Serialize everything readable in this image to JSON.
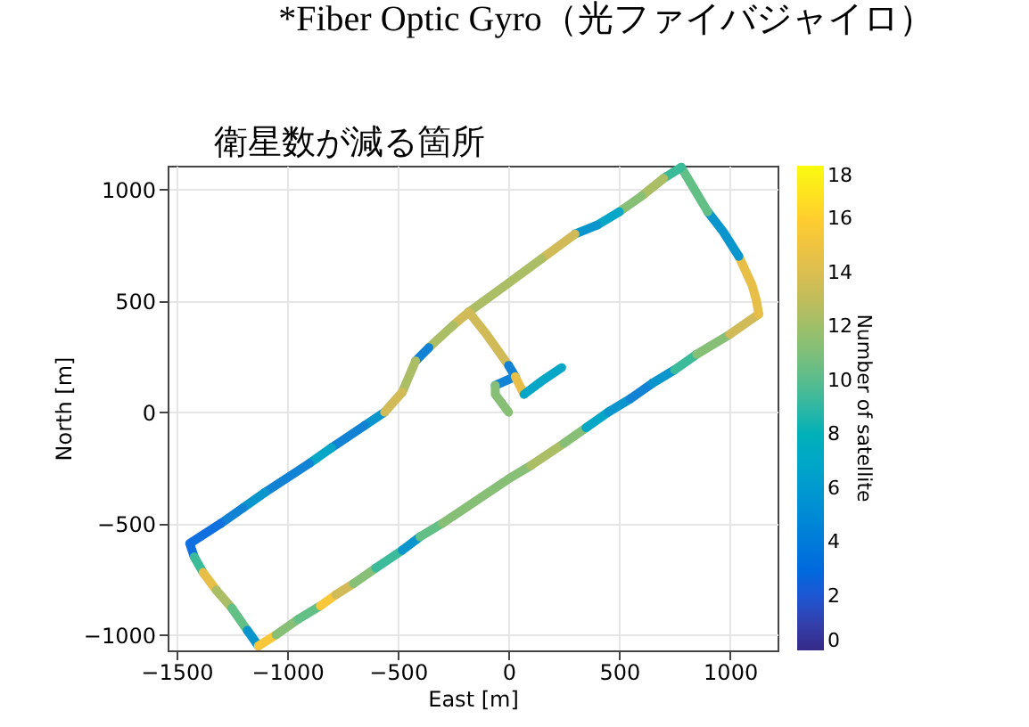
{
  "chart_data": {
    "type": "line",
    "title": "*Fiber Optic Gyro（光ファイバジャイロ）",
    "xlabel": "East [m]",
    "ylabel": "North [m]",
    "clabel": "Number of satellite",
    "annotations": [
      "衛星数が減る箇所"
    ],
    "xlim": [
      -1540,
      1215
    ],
    "ylim": [
      -1070,
      1107
    ],
    "xticks": [
      -1500,
      -1000,
      -500,
      0,
      500,
      1000
    ],
    "yticks": [
      -1000,
      -500,
      0,
      500,
      1000
    ],
    "clim": [
      0,
      18
    ],
    "cticks": [
      0,
      2,
      4,
      6,
      8,
      10,
      12,
      14,
      16,
      18
    ],
    "grid": true,
    "series": [
      {
        "color": "#0a96cc",
        "x": [
          -560,
          -650
        ],
        "values": [
          0,
          -60
        ]
      },
      {
        "color": "#1283d4",
        "x": [
          -650,
          -800
        ],
        "values": [
          -60,
          -160
        ]
      },
      {
        "color": "#06a7c6",
        "x": [
          -800,
          -900
        ],
        "values": [
          -160,
          -230
        ]
      },
      {
        "color": "#1283d4",
        "x": [
          -900,
          -1100
        ],
        "values": [
          -230,
          -360
        ]
      },
      {
        "color": "#0a96cc",
        "x": [
          -1100,
          -1200
        ],
        "values": [
          -360,
          -430
        ]
      },
      {
        "color": "#1283d4",
        "x": [
          -1200,
          -1300
        ],
        "values": [
          -430,
          -500
        ]
      },
      {
        "color": "#1170e0",
        "x": [
          -1300,
          -1440,
          -1420
        ],
        "values": [
          -500,
          -590,
          -650
        ]
      },
      {
        "color": "#3cbb9a",
        "x": [
          -1420,
          -1380
        ],
        "values": [
          -650,
          -720
        ]
      },
      {
        "color": "#e6be48",
        "x": [
          -1380,
          -1320
        ],
        "values": [
          -720,
          -800
        ]
      },
      {
        "color": "#abbd65",
        "x": [
          -1320,
          -1250
        ],
        "values": [
          -800,
          -880
        ]
      },
      {
        "color": "#62bf85",
        "x": [
          -1250,
          -1180
        ],
        "values": [
          -880,
          -980
        ]
      },
      {
        "color": "#0a96cc",
        "x": [
          -1180,
          -1130
        ],
        "values": [
          -980,
          -1050
        ]
      },
      {
        "color": "#f8c73a",
        "x": [
          -1130,
          -1050
        ],
        "values": [
          -1050,
          -1000
        ]
      },
      {
        "color": "#87bf77",
        "x": [
          -1050,
          -950
        ],
        "values": [
          -1000,
          -930
        ]
      },
      {
        "color": "#62bf85",
        "x": [
          -950,
          -850
        ],
        "values": [
          -930,
          -870
        ]
      },
      {
        "color": "#f8c73a",
        "x": [
          -850,
          -780
        ],
        "values": [
          -870,
          -820
        ]
      },
      {
        "color": "#d1bb59",
        "x": [
          -780,
          -700
        ],
        "values": [
          -820,
          -770
        ]
      },
      {
        "color": "#87bf77",
        "x": [
          -700,
          -600
        ],
        "values": [
          -770,
          -700
        ]
      },
      {
        "color": "#3cbb9a",
        "x": [
          -600,
          -480
        ],
        "values": [
          -700,
          -620
        ]
      },
      {
        "color": "#0a96cc",
        "x": [
          -480,
          -400
        ],
        "values": [
          -620,
          -560
        ]
      },
      {
        "color": "#62bf85",
        "x": [
          -400,
          -300
        ],
        "values": [
          -560,
          -500
        ]
      },
      {
        "color": "#87bf77",
        "x": [
          -300,
          -150,
          0,
          100
        ],
        "values": [
          -500,
          -400,
          -300,
          -240
        ]
      },
      {
        "color": "#abbd65",
        "x": [
          100,
          250
        ],
        "values": [
          -240,
          -140
        ]
      },
      {
        "color": "#87bf77",
        "x": [
          250,
          350
        ],
        "values": [
          -140,
          -70
        ]
      },
      {
        "color": "#06a7c6",
        "x": [
          350,
          450
        ],
        "values": [
          -70,
          0
        ]
      },
      {
        "color": "#0a96cc",
        "x": [
          450,
          550
        ],
        "values": [
          0,
          60
        ]
      },
      {
        "color": "#1283d4",
        "x": [
          550,
          650
        ],
        "values": [
          60,
          130
        ]
      },
      {
        "color": "#0a96cc",
        "x": [
          650,
          750
        ],
        "values": [
          130,
          190
        ]
      },
      {
        "color": "#3cbb9a",
        "x": [
          750,
          850
        ],
        "values": [
          190,
          260
        ]
      },
      {
        "color": "#87bf77",
        "x": [
          850,
          1000
        ],
        "values": [
          260,
          350
        ]
      },
      {
        "color": "#d1bb59",
        "x": [
          1000,
          1130
        ],
        "values": [
          350,
          440
        ]
      },
      {
        "color": "#e6be48",
        "x": [
          1130,
          1120,
          1100,
          1040
        ],
        "values": [
          440,
          500,
          570,
          700
        ]
      },
      {
        "color": "#0a96cc",
        "x": [
          1040,
          970,
          900
        ],
        "values": [
          700,
          810,
          900
        ]
      },
      {
        "color": "#62bf85",
        "x": [
          900,
          780
        ],
        "values": [
          900,
          1100
        ]
      },
      {
        "color": "#3cbb9a",
        "x": [
          780,
          700
        ],
        "values": [
          1100,
          1050
        ]
      },
      {
        "color": "#abbd65",
        "x": [
          700,
          600
        ],
        "values": [
          1050,
          970
        ]
      },
      {
        "color": "#87bf77",
        "x": [
          600,
          500
        ],
        "values": [
          970,
          900
        ]
      },
      {
        "color": "#06a7c6",
        "x": [
          500,
          400
        ],
        "values": [
          900,
          840
        ]
      },
      {
        "color": "#0a96cc",
        "x": [
          400,
          300
        ],
        "values": [
          840,
          800
        ]
      },
      {
        "color": "#d1bb59",
        "x": [
          300,
          150
        ],
        "values": [
          800,
          690
        ]
      },
      {
        "color": "#abbd65",
        "x": [
          150,
          0,
          -180
        ],
        "values": [
          690,
          580,
          450
        ]
      },
      {
        "color": "#d1bb59",
        "x": [
          -180,
          -250
        ],
        "values": [
          450,
          390
        ]
      },
      {
        "color": "#abbd65",
        "x": [
          -250,
          -360
        ],
        "values": [
          390,
          290
        ]
      },
      {
        "color": "#1283d4",
        "x": [
          -360,
          -420
        ],
        "values": [
          290,
          230
        ]
      },
      {
        "color": "#abbd65",
        "x": [
          -420,
          -480
        ],
        "values": [
          230,
          90
        ]
      },
      {
        "color": "#d1bb59",
        "x": [
          -480,
          -560
        ],
        "values": [
          90,
          0
        ]
      },
      {
        "color": "#d1bb59",
        "x": [
          -180,
          -100,
          0
        ],
        "values": [
          450,
          350,
          210
        ]
      },
      {
        "color": "#1283d4",
        "x": [
          0,
          30,
          -60
        ],
        "values": [
          210,
          160,
          120
        ]
      },
      {
        "color": "#87bf77",
        "x": [
          -60,
          -60,
          0
        ],
        "values": [
          120,
          80,
          0
        ]
      },
      {
        "color": "#e6be48",
        "x": [
          30,
          70
        ],
        "values": [
          160,
          80
        ]
      },
      {
        "color": "#06a7c6",
        "x": [
          70,
          150,
          240
        ],
        "values": [
          80,
          140,
          200
        ]
      }
    ]
  }
}
